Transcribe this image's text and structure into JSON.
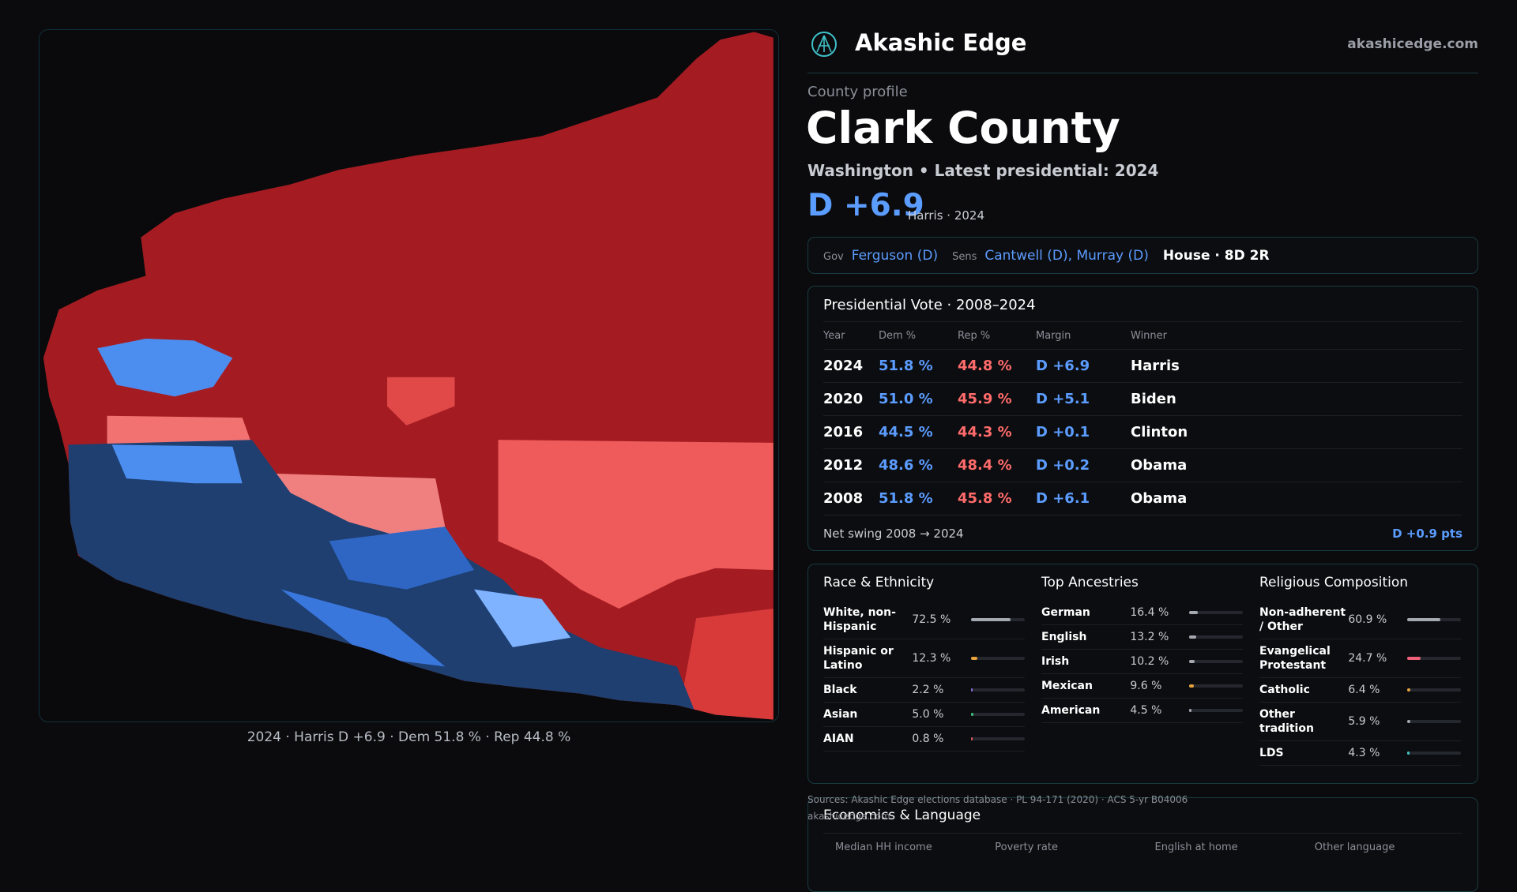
{
  "header": {
    "brand": "Akashic Edge",
    "site": "akashicedge.com"
  },
  "map": {
    "caption": "2024 · Harris D +6.9 · Dem 51.8 % · Rep 44.8 %"
  },
  "profile": {
    "eyebrow": "County profile",
    "title": "Clark County",
    "subtitle": "Washington • Latest presidential: 2024",
    "margin": "D +6.9",
    "margin_note": "Harris · 2024"
  },
  "officials": {
    "gov_label": "Gov",
    "gov": "Ferguson (D)",
    "sens_label": "Sens",
    "sens": "Cantwell (D), Murray (D)",
    "house": "House · 8D 2R"
  },
  "presidential": {
    "title": "Presidential Vote · 2008–2024",
    "columns": [
      "Year",
      "Dem %",
      "Rep %",
      "Margin",
      "Winner"
    ],
    "rows": [
      [
        "2024",
        "51.8 %",
        "44.8 %",
        "D +6.9",
        "Harris"
      ],
      [
        "2020",
        "51.0 %",
        "45.9 %",
        "D +5.1",
        "Biden"
      ],
      [
        "2016",
        "44.5 %",
        "44.3 %",
        "D +0.1",
        "Clinton"
      ],
      [
        "2012",
        "48.6 %",
        "48.4 %",
        "D +0.2",
        "Obama"
      ],
      [
        "2008",
        "51.8 %",
        "45.8 %",
        "D +6.1",
        "Obama"
      ]
    ],
    "swing_label": "Net swing 2008 → 2024",
    "swing": "D +0.9 pts"
  },
  "demographics": [
    {
      "title": "Race & Ethnicity",
      "names": [
        "White, non-Hispanic",
        "Hispanic or Latino",
        "Black",
        "Asian",
        "AIAN"
      ],
      "values": [
        72.5,
        12.3,
        2.2,
        5.0,
        0.8
      ],
      "value_labels": [
        "72.5 %",
        "12.3 %",
        "2.2 %",
        "5.0 %",
        "0.8 %"
      ],
      "colors": [
        "#a4a9b1",
        "#e8a33c",
        "#8b6fe0",
        "#3fbf7f",
        "#e05a5a"
      ]
    },
    {
      "title": "Top Ancestries",
      "names": [
        "German",
        "English",
        "Irish",
        "Mexican",
        "American"
      ],
      "values": [
        16.4,
        13.2,
        10.2,
        9.6,
        4.5
      ],
      "value_labels": [
        "16.4 %",
        "13.2 %",
        "10.2 %",
        "9.6 %",
        "4.5 %"
      ],
      "colors": [
        "#a4a9b1",
        "#a4a9b1",
        "#a4a9b1",
        "#e8a33c",
        "#a4a9b1"
      ]
    },
    {
      "title": "Religious Composition",
      "names": [
        "Non-adherent / Other",
        "Evangelical Protestant",
        "Catholic",
        "Other tradition",
        "LDS"
      ],
      "values": [
        60.9,
        24.7,
        6.4,
        5.9,
        4.3
      ],
      "value_labels": [
        "60.9 %",
        "24.7 %",
        "6.4 %",
        "5.9 %",
        "4.3 %"
      ],
      "colors": [
        "#a4a9b1",
        "#f0607a",
        "#e8a33c",
        "#a4a9b1",
        "#3fc0c8"
      ]
    }
  ],
  "footer": {
    "sources": "Sources: Akashic Edge elections database · PL 94-171 (2020) · ACS 5-yr B04006",
    "site": "akashicedge.com"
  },
  "economics": {
    "title": "Economics & Language",
    "columns": [
      "Median HH income",
      "Poverty rate",
      "English at home",
      "Other language"
    ]
  }
}
